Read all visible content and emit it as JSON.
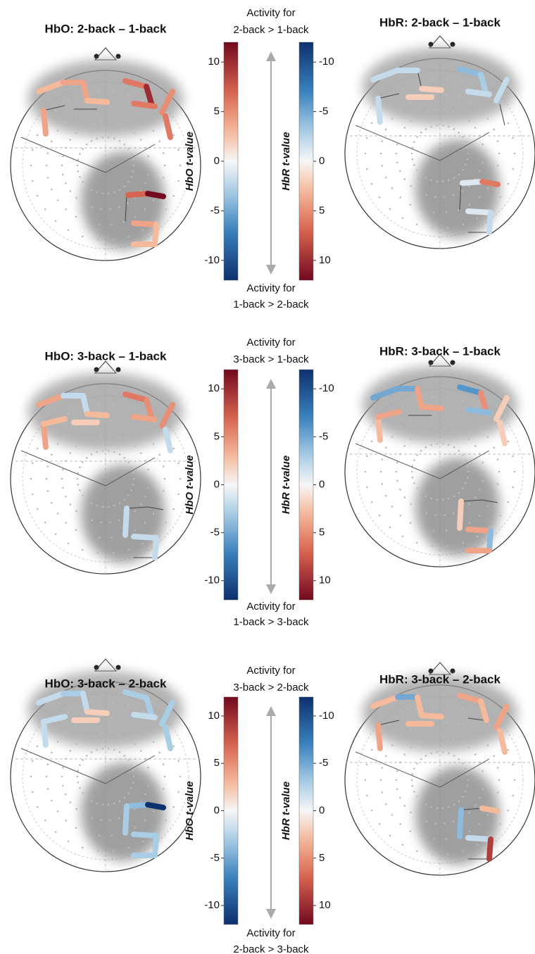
{
  "colorbars": {
    "hbo": {
      "label": "HbO t-value",
      "ylim": [
        -12,
        12
      ],
      "yticks": [
        -10,
        -5,
        0,
        5,
        10
      ]
    },
    "hbr": {
      "label": "HbR t-value",
      "ylim": [
        12,
        -12
      ],
      "yticks": [
        -10,
        -5,
        0,
        5,
        10
      ]
    }
  },
  "panels": [
    {
      "hbo_title": "HbO: 2-back – 1-back",
      "hbr_title": "HbR: 2-back – 1-back",
      "top_label": [
        "Activity for",
        "2-back > 1-back"
      ],
      "bottom_label": [
        "Activity for",
        "1-back > 2-back"
      ],
      "hbo_channels": [
        3,
        4,
        4,
        3,
        4,
        null,
        null,
        6,
        10,
        6,
        5,
        6,
        7,
        12,
        null,
        4,
        3,
        3
      ],
      "hbr_channels": [
        -2,
        -2,
        null,
        2,
        -2,
        null,
        2,
        -4,
        -3,
        -2,
        -2,
        null,
        -1,
        6,
        null,
        -1,
        -2,
        null
      ]
    },
    {
      "hbo_title": "HbO: 3-back – 1-back",
      "hbr_title": "HbR: 3-back – 1-back",
      "top_label": [
        "Activity for",
        "3-back > 1-back"
      ],
      "bottom_label": [
        "Activity for",
        "1-back > 3-back"
      ],
      "hbo_channels": [
        4,
        -2,
        -2,
        3,
        4,
        3,
        2,
        6,
        5,
        4,
        5,
        -2,
        null,
        null,
        -2,
        -2,
        -2,
        null
      ],
      "hbr_channels": [
        -5,
        -5,
        4,
        4,
        3,
        4,
        null,
        -6,
        5,
        -4,
        2,
        2,
        null,
        null,
        2,
        4,
        -4,
        4
      ]
    },
    {
      "hbo_title": "HbO: 3-back – 2-back",
      "hbr_title": "HbR: 3-back – 2-back",
      "top_label": [
        "Activity for",
        "3-back > 2-back"
      ],
      "bottom_label": [
        "Activity for",
        "2-back > 3-back"
      ],
      "hbo_channels": [
        -2,
        -3,
        -2,
        2,
        -2,
        -2,
        2,
        -3,
        -3,
        -2,
        -3,
        -3,
        -4,
        -12,
        -3,
        -3,
        -3,
        -3
      ],
      "hbr_channels": [
        3,
        -5,
        3,
        3,
        4,
        null,
        3,
        4,
        3,
        null,
        4,
        3,
        null,
        3,
        -4,
        -2,
        9,
        null
      ]
    }
  ]
}
